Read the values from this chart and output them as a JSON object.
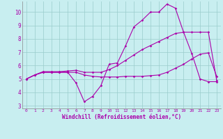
{
  "xlabel": "Windchill (Refroidissement éolien,°C)",
  "ylabel": "",
  "bg_color": "#c8eef0",
  "line_color": "#aa00aa",
  "grid_color": "#99cccc",
  "xlim": [
    -0.5,
    23.5
  ],
  "ylim": [
    2.8,
    10.8
  ],
  "yticks": [
    3,
    4,
    5,
    6,
    7,
    8,
    9,
    10
  ],
  "xticks": [
    0,
    1,
    2,
    3,
    4,
    5,
    6,
    7,
    8,
    9,
    10,
    11,
    12,
    13,
    14,
    15,
    16,
    17,
    18,
    19,
    20,
    21,
    22,
    23
  ],
  "line1_x": [
    0,
    1,
    2,
    3,
    4,
    5,
    6,
    7,
    8,
    9,
    10,
    11,
    12,
    13,
    14,
    15,
    16,
    17,
    18,
    19,
    20,
    21,
    22,
    23
  ],
  "line1_y": [
    5.0,
    5.3,
    5.5,
    5.5,
    5.5,
    5.5,
    4.7,
    3.3,
    3.7,
    4.5,
    6.1,
    6.2,
    7.5,
    8.9,
    9.4,
    10.0,
    10.0,
    10.6,
    10.3,
    8.5,
    6.9,
    5.0,
    4.8,
    4.8
  ],
  "line2_x": [
    0,
    1,
    2,
    3,
    4,
    5,
    6,
    7,
    8,
    9,
    10,
    11,
    12,
    13,
    14,
    15,
    16,
    17,
    18,
    19,
    20,
    21,
    22,
    23
  ],
  "line2_y": [
    5.0,
    5.3,
    5.5,
    5.5,
    5.5,
    5.5,
    5.5,
    5.3,
    5.2,
    5.15,
    5.15,
    5.15,
    5.2,
    5.2,
    5.2,
    5.25,
    5.3,
    5.5,
    5.8,
    6.1,
    6.5,
    6.85,
    6.95,
    5.2
  ],
  "line3_x": [
    0,
    1,
    2,
    3,
    4,
    5,
    6,
    7,
    8,
    9,
    10,
    11,
    12,
    13,
    14,
    15,
    16,
    17,
    18,
    19,
    20,
    21,
    22,
    23
  ],
  "line3_y": [
    5.0,
    5.3,
    5.55,
    5.55,
    5.55,
    5.6,
    5.65,
    5.5,
    5.5,
    5.5,
    5.7,
    6.0,
    6.4,
    6.8,
    7.2,
    7.5,
    7.8,
    8.1,
    8.4,
    8.5,
    8.5,
    8.5,
    8.5,
    4.9
  ]
}
